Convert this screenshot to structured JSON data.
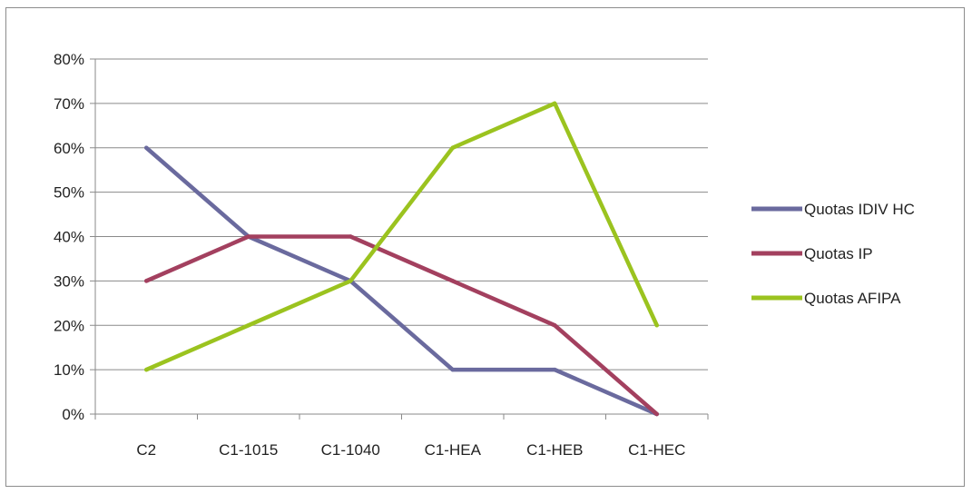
{
  "chart_data": {
    "type": "line",
    "title": "",
    "xlabel": "",
    "ylabel": "",
    "categories": [
      "C2",
      "C1-1015",
      "C1-1040",
      "C1-HEA",
      "C1-HEB",
      "C1-HEC"
    ],
    "ylim": [
      0,
      80
    ],
    "yticks": [
      0,
      10,
      20,
      30,
      40,
      50,
      60,
      70,
      80
    ],
    "ytick_labels": [
      "0%",
      "10%",
      "20%",
      "30%",
      "40%",
      "50%",
      "60%",
      "70%",
      "80%"
    ],
    "grid": true,
    "legend_position": "right",
    "series": [
      {
        "name": "Quotas IDIV HC",
        "color": "#6a6a9e",
        "values": [
          60,
          40,
          30,
          10,
          10,
          0
        ]
      },
      {
        "name": "Quotas IP",
        "color": "#a3405f",
        "values": [
          30,
          40,
          40,
          30,
          20,
          0
        ]
      },
      {
        "name": "Quotas AFIPA",
        "color": "#9bc31f",
        "values": [
          10,
          20,
          30,
          60,
          70,
          20
        ]
      }
    ]
  }
}
